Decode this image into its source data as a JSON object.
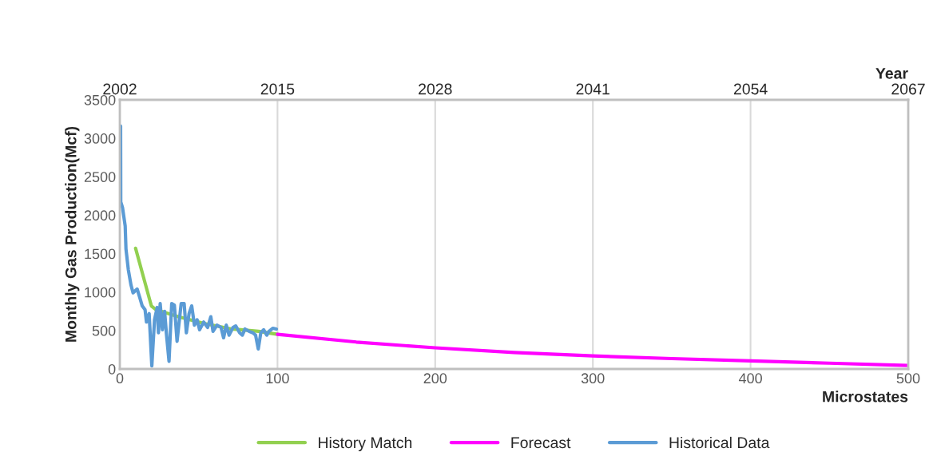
{
  "chart_data": {
    "type": "line",
    "xlabel": "Microstates",
    "ylabel": "Monthly Gas Production(Mcf)",
    "x2label": "Year",
    "xlim": [
      0,
      500
    ],
    "xticks": [
      0,
      100,
      200,
      300,
      400,
      500
    ],
    "ylim": [
      0,
      3500
    ],
    "yticks": [
      0,
      500,
      1000,
      1500,
      2000,
      2500,
      3000,
      3500
    ],
    "x2lim": [
      2002,
      2067
    ],
    "x2ticks": [
      2002,
      2015,
      2028,
      2041,
      2054,
      2067
    ],
    "grid": "x",
    "legend": "bottom",
    "series": [
      {
        "name": "History Match",
        "color": "#92d050",
        "x": [
          10,
          15,
          20,
          23,
          37,
          54,
          71,
          88,
          100
        ],
        "values": [
          1570,
          1195,
          820,
          770,
          680,
          590,
          520,
          490,
          450
        ]
      },
      {
        "name": "Forecast",
        "color": "#ff00ff",
        "x": [
          100,
          150,
          200,
          250,
          300,
          350,
          400,
          450,
          500
        ],
        "values": [
          450,
          350,
          275,
          215,
          170,
          135,
          105,
          75,
          45
        ]
      },
      {
        "name": "Historical Data",
        "color": "#5b9bd5",
        "x": [
          0.5,
          0.6,
          1.7,
          3.4,
          3.9,
          5.4,
          7.1,
          8.4,
          11,
          12.7,
          14.2,
          16,
          16.9,
          18.6,
          20.3,
          22,
          23.7,
          24.5,
          25.6,
          27,
          28.4,
          29.5,
          31.2,
          32.9,
          34.6,
          36.3,
          38.9,
          40.8,
          42.2,
          43.9,
          45.6,
          47.3,
          49,
          50.6,
          53.2,
          55.7,
          57.7,
          59.1,
          61.6,
          64.2,
          65.8,
          67.5,
          69.3,
          71.8,
          73.5,
          76,
          77.7,
          79.4,
          81.9,
          84.4,
          86.1,
          87.8,
          89.4,
          91.2,
          93.2,
          94.6,
          97.1,
          99.3
        ],
        "values": [
          3158,
          2172,
          2100,
          1860,
          1560,
          1290,
          1090,
          990,
          1040,
          925,
          820,
          770,
          610,
          720,
          40,
          640,
          800,
          470,
          850,
          510,
          750,
          470,
          100,
          850,
          830,
          360,
          850,
          850,
          470,
          720,
          820,
          570,
          640,
          510,
          610,
          540,
          680,
          490,
          570,
          540,
          405,
          570,
          440,
          540,
          560,
          470,
          440,
          520,
          490,
          470,
          440,
          260,
          470,
          510,
          440,
          490,
          530,
          520
        ]
      }
    ]
  }
}
